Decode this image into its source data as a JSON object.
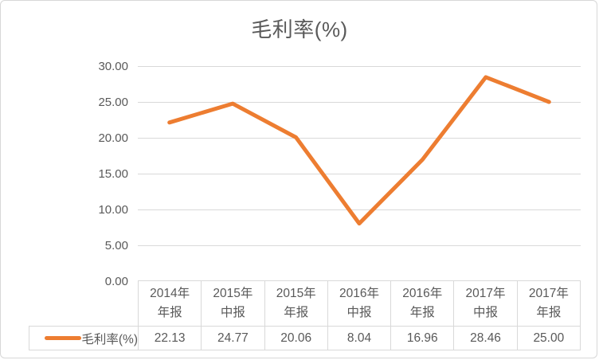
{
  "chart_data": {
    "type": "line",
    "title": "毛利率(%)",
    "categories": [
      "2014年\n年报",
      "2015年\n中报",
      "2015年\n年报",
      "2016年\n中报",
      "2016年\n年报",
      "2017年\n中报",
      "2017年\n年报"
    ],
    "series": [
      {
        "name": "毛利率(%)",
        "values": [
          22.13,
          24.77,
          20.06,
          8.04,
          16.96,
          28.46,
          25.0
        ],
        "values_display": [
          "22.13",
          "24.77",
          "20.06",
          "8.04",
          "16.96",
          "28.46",
          "25.00"
        ],
        "color": "#ED7D31"
      }
    ],
    "xlabel": "",
    "ylabel": "",
    "ylim": [
      0,
      30
    ],
    "y_ticks": [
      0,
      5,
      10,
      15,
      20,
      25,
      30
    ],
    "y_tick_labels": [
      "0.00",
      "5.00",
      "10.00",
      "15.00",
      "20.00",
      "25.00",
      "30.00"
    ],
    "grid": true,
    "legend_position": "data-table",
    "colors": {
      "text": "#595959",
      "gridline": "#d9d9d9",
      "table_border": "#d9d9d9",
      "series": "#ED7D31"
    }
  }
}
